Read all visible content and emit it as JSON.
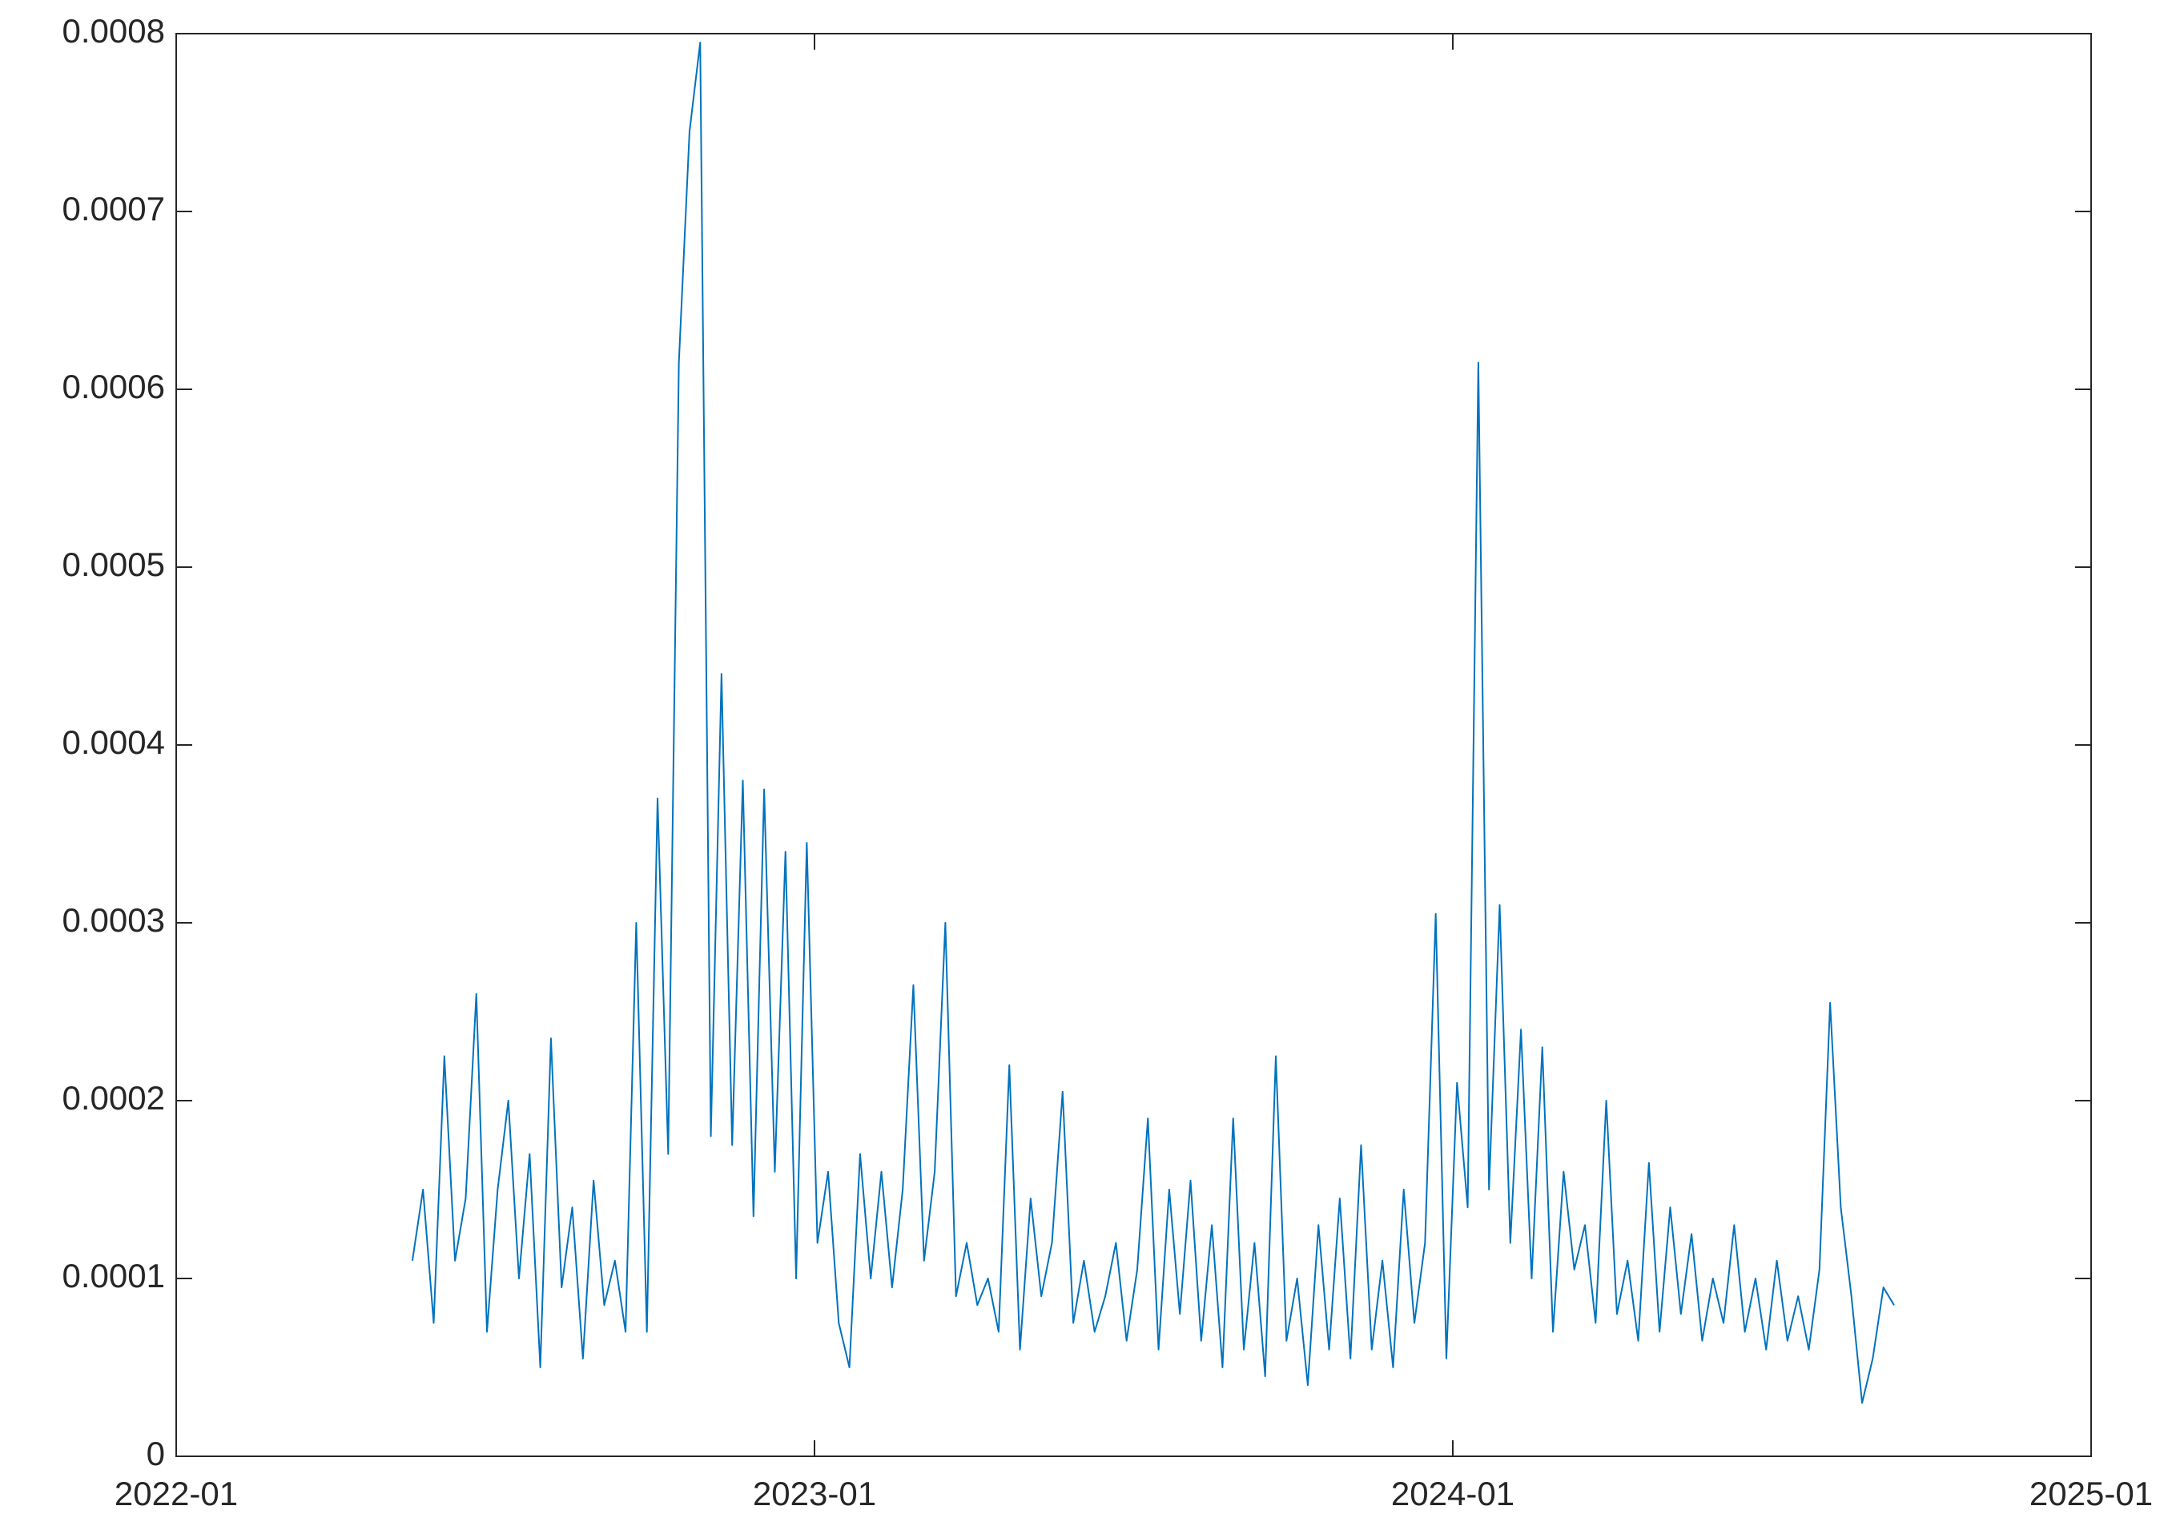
{
  "chart_data": {
    "type": "line",
    "x": [
      2022.37,
      2022.3867,
      2022.4034,
      2022.4201,
      2022.4368,
      2022.4535,
      2022.4702,
      2022.4869,
      2022.5036,
      2022.5203,
      2022.537,
      2022.5537,
      2022.5704,
      2022.5871,
      2022.6038,
      2022.6205,
      2022.6372,
      2022.6539,
      2022.6706,
      2022.6873,
      2022.704,
      2022.7207,
      2022.7374,
      2022.7541,
      2022.7708,
      2022.7875,
      2022.8042,
      2022.8209,
      2022.8376,
      2022.8543,
      2022.871,
      2022.8877,
      2022.9044,
      2022.9211,
      2022.9378,
      2022.9545,
      2022.9712,
      2022.9879,
      2023.0046,
      2023.0213,
      2023.038,
      2023.0547,
      2023.0714,
      2023.0881,
      2023.1048,
      2023.1215,
      2023.1382,
      2023.1549,
      2023.1716,
      2023.1883,
      2023.205,
      2023.2217,
      2023.2384,
      2023.2551,
      2023.2718,
      2023.2885,
      2023.3052,
      2023.3219,
      2023.3386,
      2023.3553,
      2023.372,
      2023.3887,
      2023.4054,
      2023.4221,
      2023.4388,
      2023.4555,
      2023.4722,
      2023.4889,
      2023.5056,
      2023.5223,
      2023.539,
      2023.5557,
      2023.5724,
      2023.5891,
      2023.6058,
      2023.6225,
      2023.6392,
      2023.6559,
      2023.6726,
      2023.6893,
      2023.706,
      2023.7227,
      2023.7394,
      2023.7561,
      2023.7728,
      2023.7895,
      2023.8062,
      2023.8229,
      2023.8396,
      2023.8563,
      2023.873,
      2023.8897,
      2023.9064,
      2023.9231,
      2023.9398,
      2023.9565,
      2023.9732,
      2023.9899,
      2024.0066,
      2024.0233,
      2024.04,
      2024.0567,
      2024.0734,
      2024.0901,
      2024.1068,
      2024.1235,
      2024.1402,
      2024.1569,
      2024.1736,
      2024.1903,
      2024.207,
      2024.2237,
      2024.2404,
      2024.2571,
      2024.2738,
      2024.2905,
      2024.3072,
      2024.3239,
      2024.3406,
      2024.3573,
      2024.374,
      2024.3907,
      2024.4074,
      2024.4241,
      2024.4408,
      2024.4575,
      2024.4742,
      2024.4909,
      2024.5076,
      2024.5243,
      2024.541,
      2024.5577,
      2024.5744,
      2024.5911,
      2024.6078,
      2024.6245,
      2024.6412,
      2024.6579,
      2024.6746,
      2024.6913
    ],
    "series": [
      {
        "color": "#0072bd",
        "values": [
          0.00011,
          0.00015,
          7.5e-05,
          0.000225,
          0.00011,
          0.000145,
          0.00026,
          7e-05,
          0.00015,
          0.0002,
          0.0001,
          0.00017,
          5e-05,
          0.000235,
          9.5e-05,
          0.00014,
          5.5e-05,
          0.000155,
          8.5e-05,
          0.00011,
          7e-05,
          0.0003,
          7e-05,
          0.00037,
          0.00017,
          0.000615,
          0.000745,
          0.000795,
          0.00018,
          0.00044,
          0.000175,
          0.00038,
          0.000135,
          0.000375,
          0.00016,
          0.00034,
          0.0001,
          0.000345,
          0.00012,
          0.00016,
          7.5e-05,
          5e-05,
          0.00017,
          0.0001,
          0.00016,
          9.5e-05,
          0.00015,
          0.000265,
          0.00011,
          0.00016,
          0.0003,
          9e-05,
          0.00012,
          8.5e-05,
          0.0001,
          7e-05,
          0.00022,
          6e-05,
          0.000145,
          9e-05,
          0.00012,
          0.000205,
          7.5e-05,
          0.00011,
          7e-05,
          9e-05,
          0.00012,
          6.5e-05,
          0.000105,
          0.00019,
          6e-05,
          0.00015,
          8e-05,
          0.000155,
          6.5e-05,
          0.00013,
          5e-05,
          0.00019,
          6e-05,
          0.00012,
          4.5e-05,
          0.000225,
          6.5e-05,
          0.0001,
          4e-05,
          0.00013,
          6e-05,
          0.000145,
          5.5e-05,
          0.000175,
          6e-05,
          0.00011,
          5e-05,
          0.00015,
          7.5e-05,
          0.00012,
          0.000305,
          5.5e-05,
          0.00021,
          0.00014,
          0.000615,
          0.00015,
          0.00031,
          0.00012,
          0.00024,
          0.0001,
          0.00023,
          7e-05,
          0.00016,
          0.000105,
          0.00013,
          7.5e-05,
          0.0002,
          8e-05,
          0.00011,
          6.5e-05,
          0.000165,
          7e-05,
          0.00014,
          8e-05,
          0.000125,
          6.5e-05,
          0.0001,
          7.5e-05,
          0.00013,
          7e-05,
          0.0001,
          6e-05,
          0.00011,
          6.5e-05,
          9e-05,
          6e-05,
          0.000105,
          0.000255,
          0.00014,
          9e-05,
          3e-05,
          5.5e-05,
          9.5e-05,
          8.5e-05
        ]
      }
    ],
    "xlim": [
      2022,
      2025
    ],
    "xticks": [
      {
        "value": 2022,
        "label": "2022-01"
      },
      {
        "value": 2023,
        "label": "2023-01"
      },
      {
        "value": 2024,
        "label": "2024-01"
      },
      {
        "value": 2025,
        "label": "2025-01"
      }
    ],
    "ylim": [
      0,
      0.0008
    ],
    "yticks": [
      0,
      0.0001,
      0.0002,
      0.0003,
      0.0004,
      0.0005,
      0.0006,
      0.0007,
      0.0008
    ]
  }
}
